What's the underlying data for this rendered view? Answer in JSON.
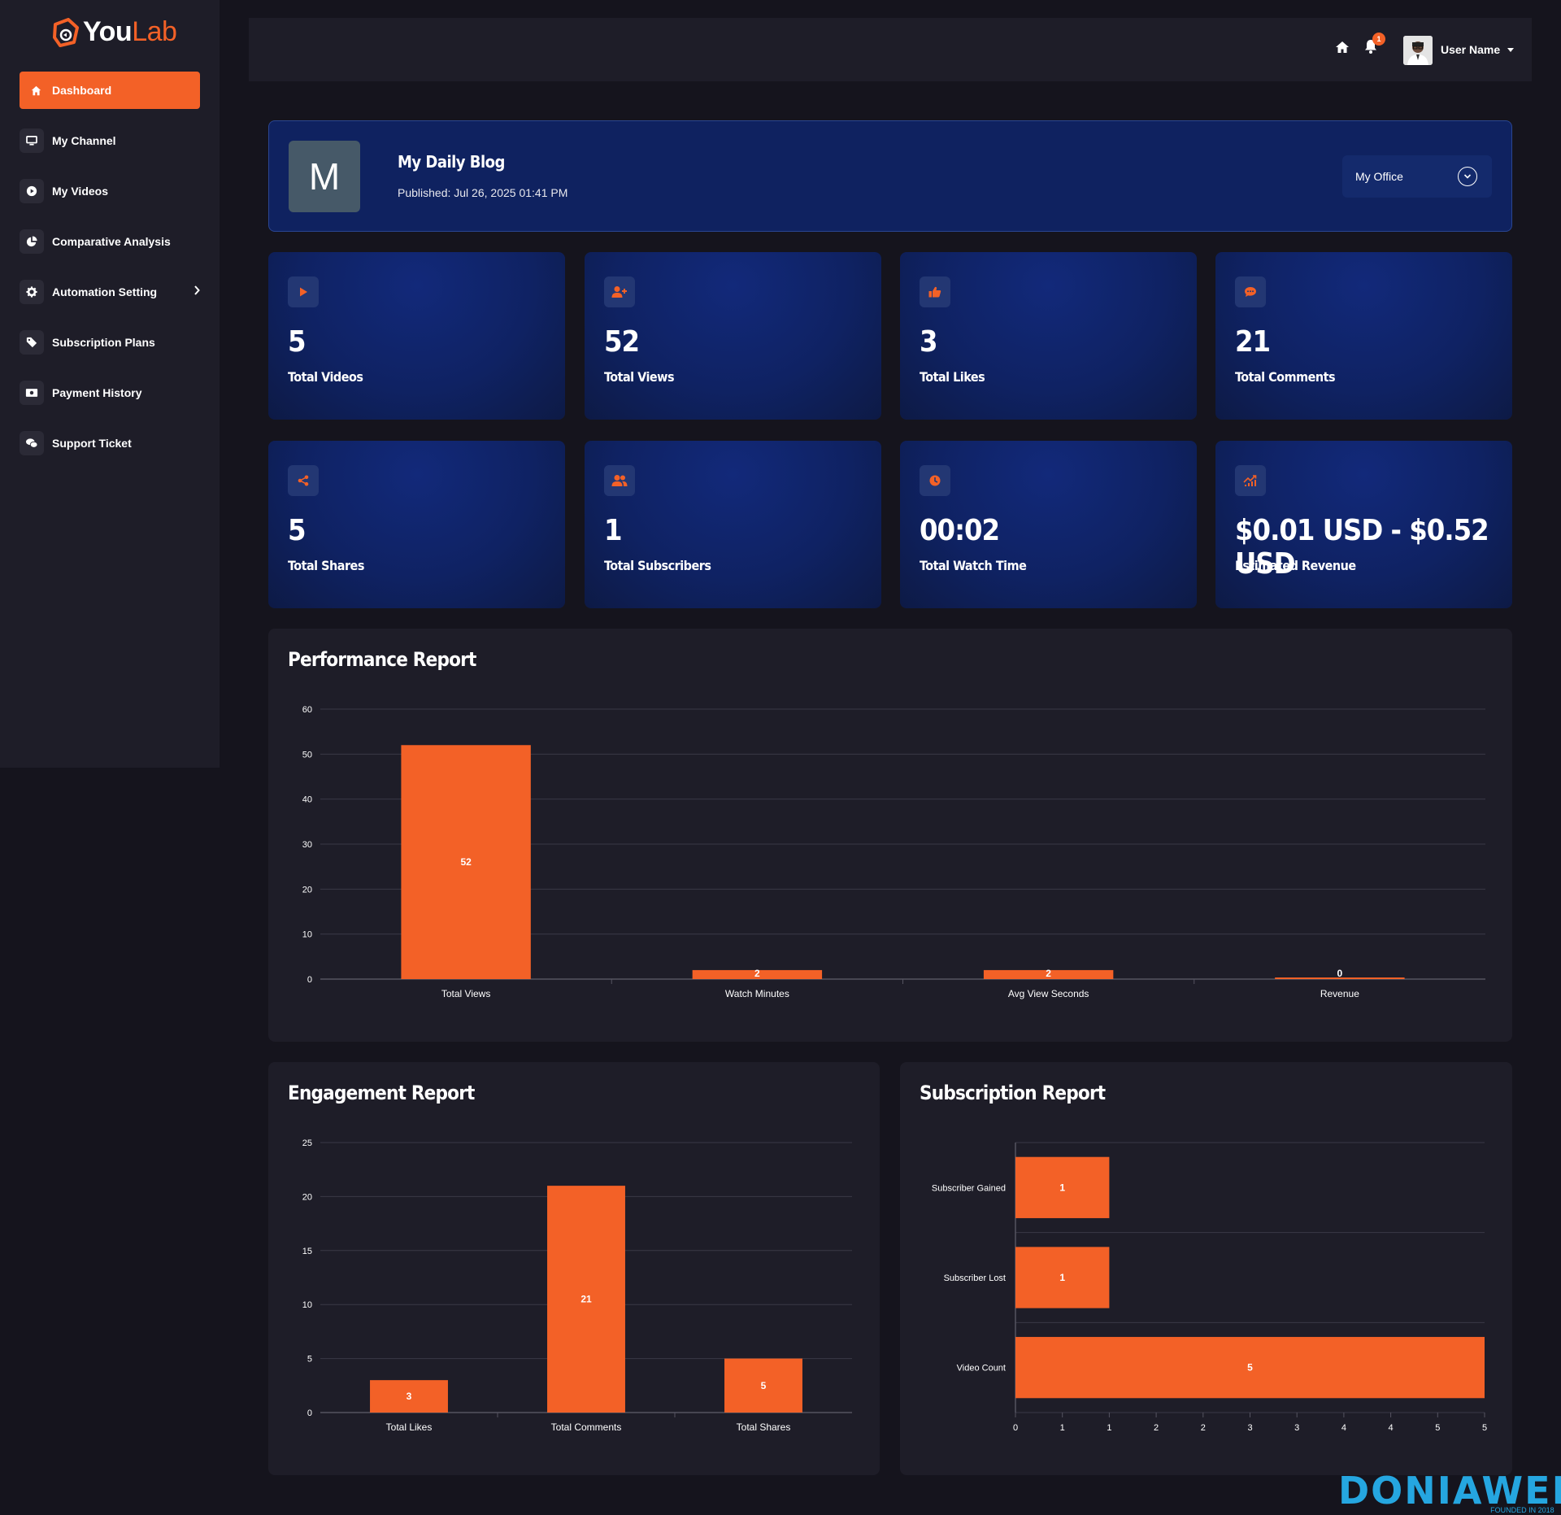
{
  "app": {
    "logo_you": "You",
    "logo_lab": "Lab",
    "brand_color": "#f36127"
  },
  "sidebar": {
    "items": [
      {
        "label": "Dashboard",
        "icon": "home-icon",
        "active": true
      },
      {
        "label": "My Channel",
        "icon": "monitor-icon"
      },
      {
        "label": "My Videos",
        "icon": "play-circle-icon"
      },
      {
        "label": "Comparative Analysis",
        "icon": "pie-chart-icon"
      },
      {
        "label": "Automation Setting",
        "icon": "gear-icon",
        "has_children": true
      },
      {
        "label": "Subscription Plans",
        "icon": "tag-icon"
      },
      {
        "label": "Payment History",
        "icon": "money-icon"
      },
      {
        "label": "Support Ticket",
        "icon": "chat-icon"
      }
    ]
  },
  "topbar": {
    "notification_count": "1",
    "user_name": "User Name"
  },
  "banner": {
    "avatar_letter": "M",
    "title": "My Daily Blog",
    "published": "Published: Jul 26, 2025 01:41 PM",
    "select_value": "My Office"
  },
  "stats": [
    {
      "value": "5",
      "label": "Total Videos",
      "icon": "play-icon"
    },
    {
      "value": "52",
      "label": "Total Views",
      "icon": "user-plus-icon"
    },
    {
      "value": "3",
      "label": "Total Likes",
      "icon": "thumbs-up-icon"
    },
    {
      "value": "21",
      "label": "Total Comments",
      "icon": "comment-icon"
    },
    {
      "value": "5",
      "label": "Total Shares",
      "icon": "share-icon"
    },
    {
      "value": "1",
      "label": "Total Subscribers",
      "icon": "users-icon"
    },
    {
      "value": "00:02",
      "label": "Total Watch Time",
      "icon": "clock-icon"
    },
    {
      "value": "$0.01 USD - $0.52 USD",
      "label": "Estimated Revenue",
      "icon": "trend-icon"
    }
  ],
  "chart_data": [
    {
      "type": "bar",
      "title": "Performance Report",
      "categories": [
        "Total Views",
        "Watch Minutes",
        "Avg View Seconds",
        "Revenue"
      ],
      "values": [
        52,
        2,
        2,
        0
      ],
      "data_labels": [
        "52",
        "2",
        "2",
        "0"
      ],
      "ylim": [
        0,
        60
      ],
      "yticks": [
        "0",
        "10",
        "20",
        "30",
        "40",
        "50",
        "60"
      ],
      "grid": true
    },
    {
      "type": "bar",
      "title": "Engagement Report",
      "categories": [
        "Total Likes",
        "Total Comments",
        "Total Shares"
      ],
      "values": [
        3,
        21,
        5
      ],
      "data_labels": [
        "3",
        "21",
        "5"
      ],
      "ylim": [
        0,
        25
      ],
      "yticks": [
        "0",
        "5",
        "10",
        "15",
        "20",
        "25"
      ],
      "grid": true
    },
    {
      "type": "bar",
      "orientation": "horizontal",
      "title": "Subscription Report",
      "categories": [
        "Subscriber Gained",
        "Subscriber Lost",
        "Video Count"
      ],
      "values": [
        1,
        1,
        5
      ],
      "data_labels": [
        "1",
        "1",
        "5"
      ],
      "xlim": [
        0,
        5
      ],
      "xticks": [
        "0",
        "1",
        "1",
        "2",
        "2",
        "3",
        "3",
        "4",
        "4",
        "5",
        "5"
      ],
      "grid": true
    }
  ],
  "watermark": {
    "text": "DONIAWEB",
    "sub": "FOUNDED IN 2018"
  }
}
